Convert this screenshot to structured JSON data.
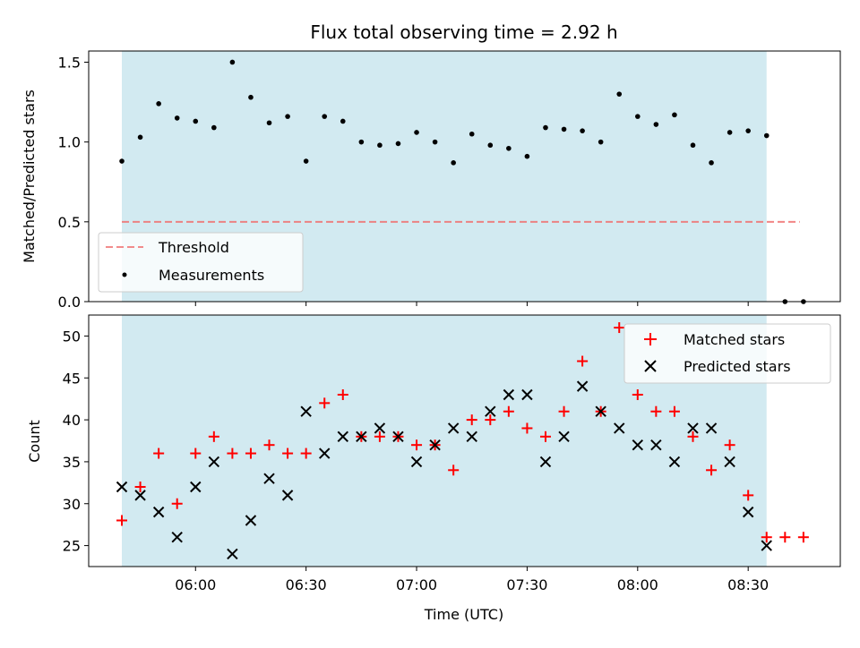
{
  "chart_data": [
    {
      "type": "scatter",
      "title": "Flux total observing time = 2.92 h",
      "xlabel": "",
      "ylabel": "Matched/Predicted stars",
      "ylim": [
        0,
        1.57
      ],
      "yticks": [
        0.0,
        0.5,
        1.0,
        1.5
      ],
      "ytick_labels": [
        "0.0",
        "0.5",
        "1.0",
        "1.5"
      ],
      "shaded_span_minutes": [
        0,
        175
      ],
      "shaded_color": "#add8e6",
      "legend_position": "lower-left",
      "threshold": {
        "name": "Threshold",
        "value": 0.5,
        "x_minutes": [
          0,
          184
        ],
        "color": "#f07070"
      },
      "series": [
        {
          "name": "Measurements",
          "color": "#000000",
          "x_minutes": [
            0,
            5,
            10,
            15,
            20,
            25,
            30,
            35,
            40,
            45,
            50,
            55,
            60,
            65,
            70,
            75,
            80,
            85,
            90,
            95,
            100,
            105,
            110,
            115,
            120,
            125,
            130,
            135,
            140,
            145,
            150,
            155,
            160,
            165,
            170,
            175,
            180,
            185
          ],
          "values": [
            0.88,
            1.03,
            1.24,
            1.15,
            1.13,
            1.09,
            1.5,
            1.28,
            1.12,
            1.16,
            0.88,
            1.16,
            1.13,
            1.0,
            0.98,
            0.99,
            1.06,
            1.0,
            0.87,
            1.05,
            0.98,
            0.96,
            0.91,
            1.09,
            1.08,
            1.07,
            1.0,
            1.3,
            1.16,
            1.11,
            1.17,
            0.98,
            0.87,
            1.06,
            1.07,
            1.04,
            0.0,
            0.0
          ]
        }
      ]
    },
    {
      "type": "scatter",
      "title": "",
      "xlabel": "Time (UTC)",
      "ylabel": "Count",
      "ylim": [
        22.5,
        52.5
      ],
      "yticks": [
        25,
        30,
        35,
        40,
        45,
        50
      ],
      "ytick_labels": [
        "25",
        "30",
        "35",
        "40",
        "45",
        "50"
      ],
      "xlim_minutes": [
        -9,
        195
      ],
      "xticks_minutes": [
        20,
        50,
        80,
        110,
        140,
        170
      ],
      "xtick_labels": [
        "06:00",
        "06:30",
        "07:00",
        "07:30",
        "08:00",
        "08:30"
      ],
      "shaded_span_minutes": [
        0,
        175
      ],
      "shaded_color": "#add8e6",
      "legend_position": "top-right",
      "series": [
        {
          "name": "Matched stars",
          "marker": "plus",
          "color": "#ff0000",
          "x_minutes": [
            0,
            5,
            10,
            15,
            20,
            25,
            30,
            35,
            40,
            45,
            50,
            55,
            60,
            65,
            70,
            75,
            80,
            85,
            90,
            95,
            100,
            105,
            110,
            115,
            120,
            125,
            130,
            135,
            140,
            145,
            150,
            155,
            160,
            165,
            170,
            175,
            180,
            185
          ],
          "values": [
            28,
            32,
            36,
            30,
            36,
            38,
            36,
            36,
            37,
            36,
            36,
            42,
            43,
            38,
            38,
            38,
            37,
            37,
            34,
            40,
            40,
            41,
            39,
            38,
            41,
            47,
            41,
            51,
            43,
            41,
            41,
            38,
            34,
            37,
            31,
            26,
            26,
            26
          ]
        },
        {
          "name": "Predicted stars",
          "marker": "x",
          "color": "#000000",
          "x_minutes": [
            0,
            5,
            10,
            15,
            20,
            25,
            30,
            35,
            40,
            45,
            50,
            55,
            60,
            65,
            70,
            75,
            80,
            85,
            90,
            95,
            100,
            105,
            110,
            115,
            120,
            125,
            130,
            135,
            140,
            145,
            150,
            155,
            160,
            165,
            170,
            175
          ],
          "values": [
            32,
            31,
            29,
            26,
            32,
            35,
            24,
            28,
            33,
            31,
            41,
            36,
            38,
            38,
            39,
            38,
            35,
            37,
            39,
            38,
            41,
            43,
            43,
            35,
            38,
            44,
            41,
            39,
            37,
            37,
            35,
            39,
            39,
            35,
            29,
            25
          ]
        }
      ]
    }
  ]
}
